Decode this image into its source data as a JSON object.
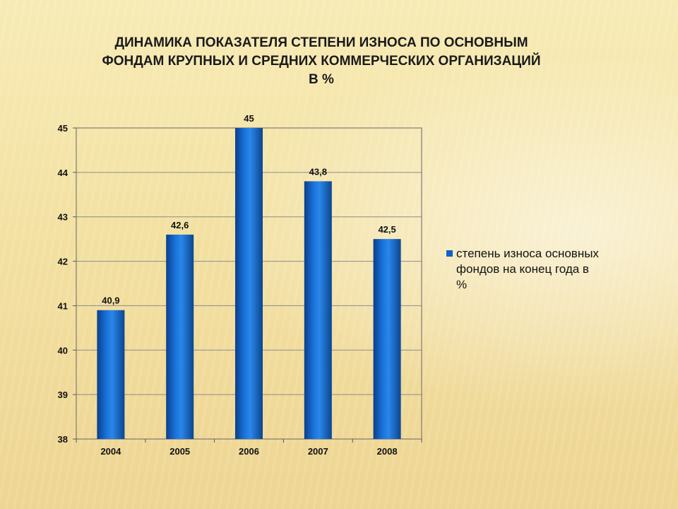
{
  "slide": {
    "title_lines": [
      "ДИНАМИКА ПОКАЗАТЕЛЯ СТЕПЕНИ ИЗНОСА  ПО ОСНОВНЫМ",
      "ФОНДАМ КРУПНЫХ И СРЕДНИХ КОММЕРЧЕСКИХ ОРГАНИЗАЦИЙ",
      "В %"
    ]
  },
  "chart_data": {
    "type": "bar",
    "title": "ДИНАМИКА ПОКАЗАТЕЛЯ СТЕПЕНИ ИЗНОСА  ПО ОСНОВНЫМ ФОНДАМ КРУПНЫХ И СРЕДНИХ КОММЕРЧЕСКИХ ОРГАНИЗАЦИЙ В %",
    "categories": [
      "2004",
      "2005",
      "2006",
      "2007",
      "2008"
    ],
    "series": [
      {
        "name": "степень износа основных фондов на конец года в %",
        "values": [
          40.9,
          42.6,
          45,
          43.8,
          42.5
        ],
        "labels": [
          "40,9",
          "42,6",
          "45",
          "43,8",
          "42,5"
        ],
        "color": "#1060c8"
      }
    ],
    "ylim": [
      38,
      45
    ],
    "yticks": [
      38,
      39,
      40,
      41,
      42,
      43,
      44,
      45
    ],
    "xlabel": "",
    "ylabel": "",
    "grid": true,
    "legend_position": "right"
  }
}
